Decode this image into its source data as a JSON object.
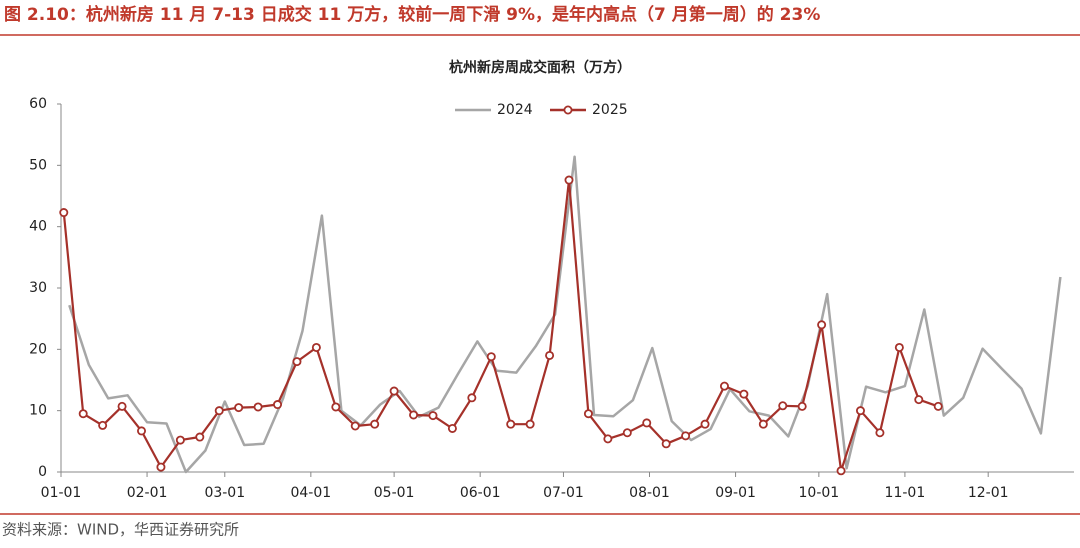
{
  "header": {
    "title": "图 2.10：杭州新房 11 月 7-13 日成交 11 万方，较前一周下滑 9%，是年内高点（7 月第一周）的 23%"
  },
  "footer": {
    "source": "资料来源：WIND，华西证券研究所"
  },
  "chart_data": {
    "type": "line",
    "title": "杭州新房周成交面积（万方）",
    "ylim": [
      0,
      60
    ],
    "yticks": [
      0,
      10,
      20,
      30,
      40,
      50,
      60
    ],
    "xticks": [
      "01-01",
      "02-01",
      "03-01",
      "04-01",
      "05-01",
      "06-01",
      "07-01",
      "08-01",
      "09-01",
      "10-01",
      "11-01",
      "12-01"
    ],
    "grid": false,
    "legend": "top",
    "series": [
      {
        "name": "2024",
        "color": "#a6a6a6",
        "marker": false,
        "x": [
          "01-04",
          "01-11",
          "01-18",
          "01-25",
          "02-01",
          "02-08",
          "02-15",
          "02-22",
          "03-01",
          "03-08",
          "03-15",
          "03-22",
          "03-29",
          "04-05",
          "04-12",
          "04-19",
          "04-26",
          "05-03",
          "05-10",
          "05-17",
          "05-24",
          "05-31",
          "06-07",
          "06-14",
          "06-21",
          "06-28",
          "07-05",
          "07-12",
          "07-19",
          "07-26",
          "08-02",
          "08-09",
          "08-16",
          "08-23",
          "08-30",
          "09-06",
          "09-13",
          "09-20",
          "09-27",
          "10-04",
          "10-11",
          "10-18",
          "10-25",
          "11-01",
          "11-08",
          "11-15",
          "11-22",
          "11-29",
          "12-06",
          "12-13",
          "12-20",
          "12-27"
        ],
        "values": [
          27.2,
          17.5,
          12.0,
          12.5,
          8.1,
          7.9,
          0,
          3.5,
          11.5,
          4.4,
          4.6,
          12.0,
          23.0,
          41.8,
          10.0,
          7.6,
          11.0,
          13.2,
          9.0,
          10.5,
          16.0,
          21.3,
          16.5,
          16.2,
          20.5,
          25.7,
          51.4,
          9.3,
          9.1,
          11.7,
          20.2,
          8.3,
          5.2,
          7.0,
          13.5,
          9.9,
          9.2,
          5.8,
          14.0,
          29.0,
          0.6,
          13.9,
          13.0,
          14.0,
          26.5,
          9.2,
          12.1,
          20.1,
          16.8,
          13.6,
          6.3,
          31.8
        ]
      },
      {
        "name": "2025",
        "color": "#a5312a",
        "marker": true,
        "x": [
          "01-02",
          "01-09",
          "01-16",
          "01-23",
          "01-30",
          "02-06",
          "02-13",
          "02-20",
          "02-27",
          "03-06",
          "03-13",
          "03-20",
          "03-27",
          "04-03",
          "04-10",
          "04-17",
          "04-24",
          "05-01",
          "05-08",
          "05-15",
          "05-22",
          "05-29",
          "06-05",
          "06-12",
          "06-19",
          "06-26",
          "07-03",
          "07-10",
          "07-17",
          "07-24",
          "07-31",
          "08-07",
          "08-14",
          "08-21",
          "08-28",
          "09-04",
          "09-11",
          "09-18",
          "09-25",
          "10-02",
          "10-09",
          "10-16",
          "10-23",
          "10-30",
          "11-06",
          "11-13"
        ],
        "values": [
          42.3,
          9.5,
          7.6,
          10.7,
          6.7,
          0.8,
          5.2,
          5.7,
          10.0,
          10.5,
          10.6,
          11.0,
          18.0,
          20.3,
          10.6,
          7.5,
          7.8,
          13.2,
          9.3,
          9.2,
          7.1,
          12.1,
          18.8,
          7.8,
          7.8,
          19.0,
          47.6,
          9.5,
          5.4,
          6.4,
          8.0,
          4.6,
          5.9,
          7.8,
          14.0,
          12.7,
          7.8,
          10.8,
          10.7,
          24.0,
          0.2,
          10.0,
          6.4,
          20.3,
          11.8,
          10.7
        ]
      }
    ]
  }
}
